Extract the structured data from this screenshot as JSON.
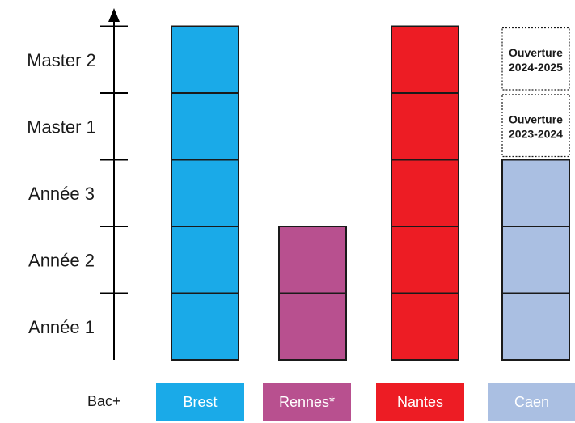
{
  "levels": [
    "Année 1",
    "Année 2",
    "Année 3",
    "Master 1",
    "Master 2"
  ],
  "bac_label": "Bac+",
  "campuses": [
    {
      "name": "Brest",
      "color": "#1aaae8",
      "years": 5,
      "planned": []
    },
    {
      "name": "Rennes*",
      "color": "#b8508f",
      "years": 2,
      "planned": []
    },
    {
      "name": "Nantes",
      "color": "#ed1c24",
      "years": 5,
      "planned": []
    },
    {
      "name": "Caen",
      "color": "#aabfe2",
      "years": 3,
      "planned": [
        {
          "line1": "Ouverture",
          "line2": "2023-2024"
        },
        {
          "line1": "Ouverture",
          "line2": "2024-2025"
        }
      ]
    }
  ]
}
